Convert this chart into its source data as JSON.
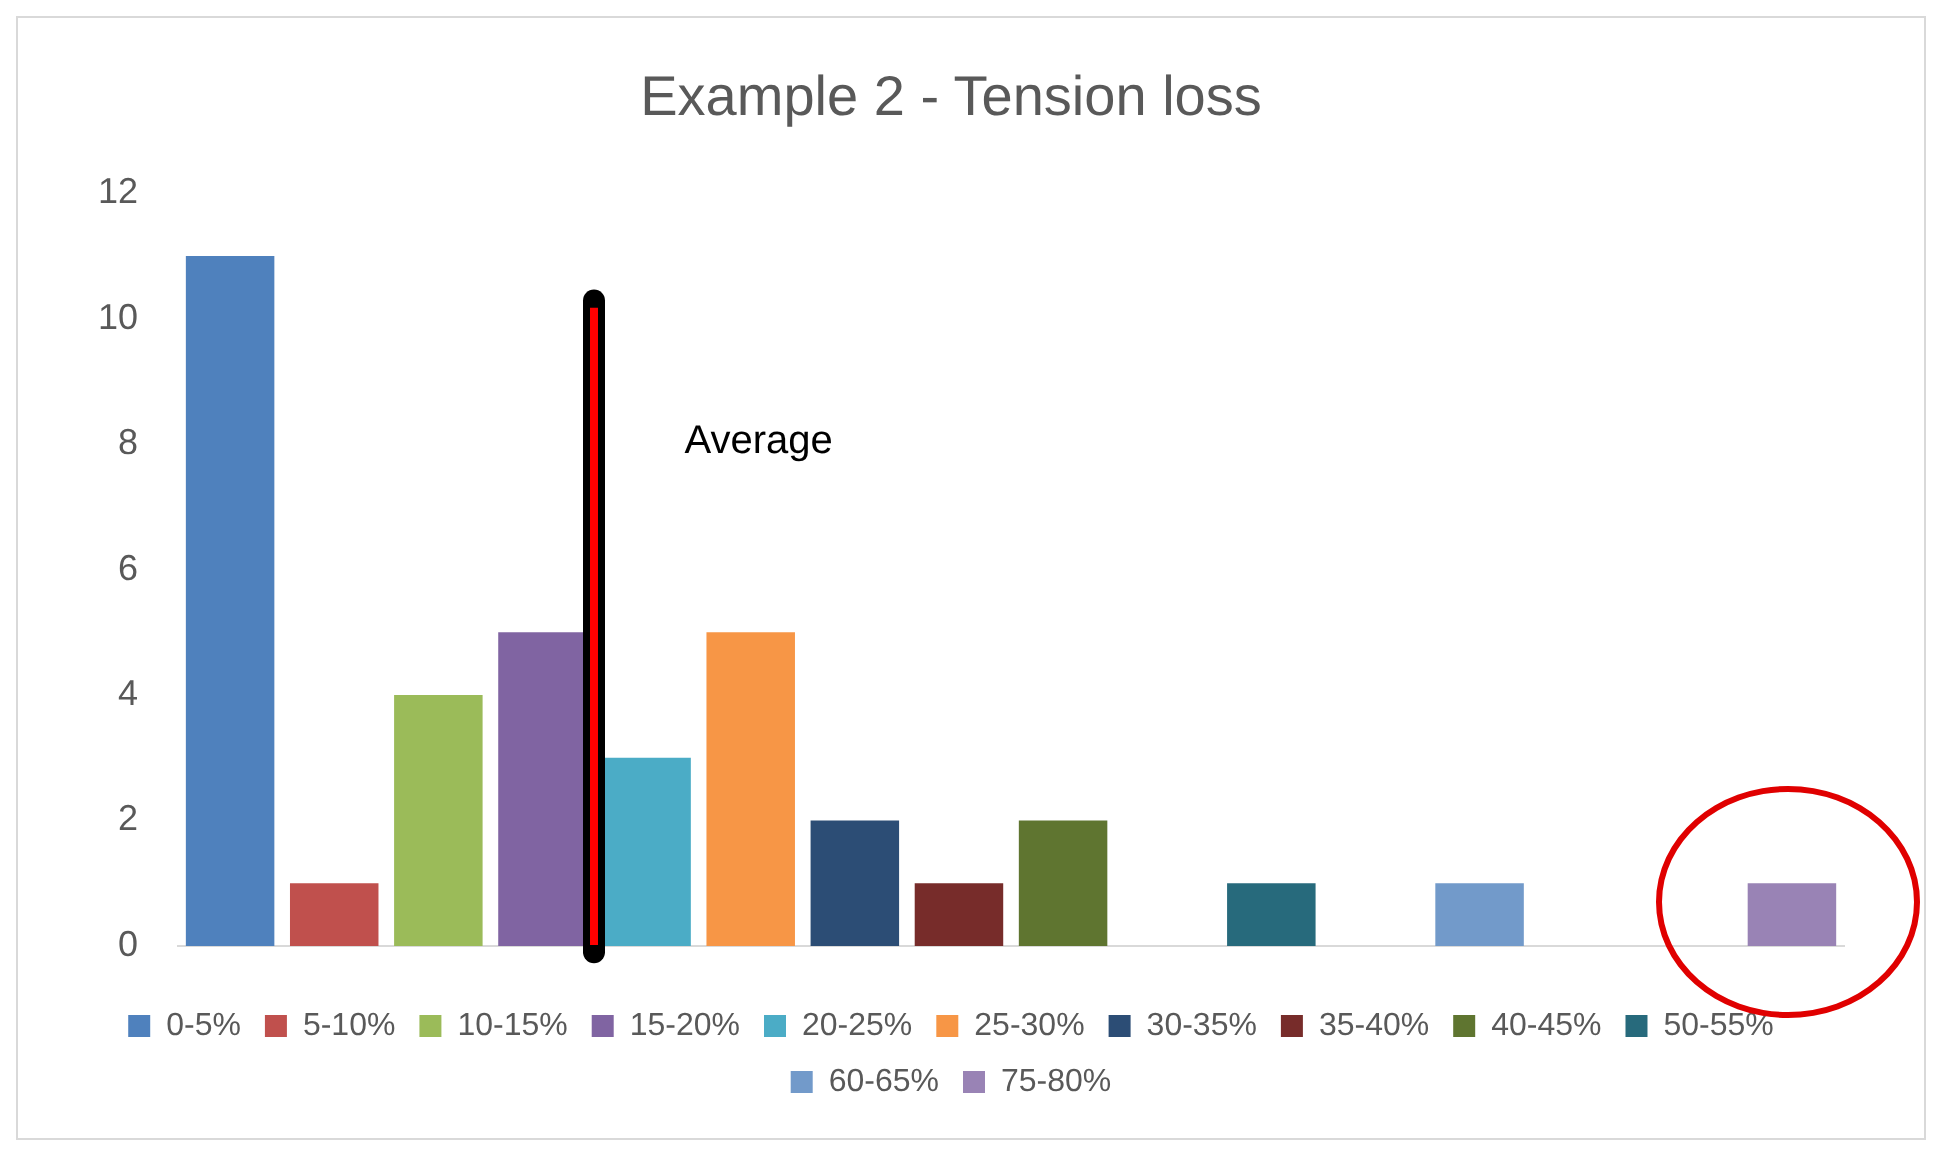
{
  "chart_data": {
    "type": "bar",
    "title": "Example 2 - Tension loss",
    "categories": [
      null,
      null,
      null,
      null,
      null,
      null,
      null,
      null,
      null,
      null,
      null,
      null,
      null,
      null,
      null,
      null
    ],
    "series": [
      {
        "name": "0-5%",
        "color": "#4f81bd",
        "values": [
          11,
          null,
          null,
          null,
          null,
          null,
          null,
          null,
          null,
          null,
          null,
          null,
          null,
          null,
          null,
          null
        ]
      },
      {
        "name": "5-10%",
        "color": "#c0504d",
        "values": [
          null,
          1,
          null,
          null,
          null,
          null,
          null,
          null,
          null,
          null,
          null,
          null,
          null,
          null,
          null,
          null
        ]
      },
      {
        "name": "10-15%",
        "color": "#9bbb59",
        "values": [
          null,
          null,
          4,
          null,
          null,
          null,
          null,
          null,
          null,
          null,
          null,
          null,
          null,
          null,
          null,
          null
        ]
      },
      {
        "name": "15-20%",
        "color": "#8064a2",
        "values": [
          null,
          null,
          null,
          5,
          null,
          null,
          null,
          null,
          null,
          null,
          null,
          null,
          null,
          null,
          null,
          null
        ]
      },
      {
        "name": "20-25%",
        "color": "#4bacc6",
        "values": [
          null,
          null,
          null,
          null,
          3,
          null,
          null,
          null,
          null,
          null,
          null,
          null,
          null,
          null,
          null,
          null
        ]
      },
      {
        "name": "25-30%",
        "color": "#f79646",
        "values": [
          null,
          null,
          null,
          null,
          null,
          5,
          null,
          null,
          null,
          null,
          null,
          null,
          null,
          null,
          null,
          null
        ]
      },
      {
        "name": "30-35%",
        "color": "#2c4d75",
        "values": [
          null,
          null,
          null,
          null,
          null,
          null,
          2,
          null,
          null,
          null,
          null,
          null,
          null,
          null,
          null,
          null
        ]
      },
      {
        "name": "35-40%",
        "color": "#772c2a",
        "values": [
          null,
          null,
          null,
          null,
          null,
          null,
          null,
          1,
          null,
          null,
          null,
          null,
          null,
          null,
          null,
          null
        ]
      },
      {
        "name": "40-45%",
        "color": "#5f7530",
        "values": [
          null,
          null,
          null,
          null,
          null,
          null,
          null,
          null,
          2,
          null,
          null,
          null,
          null,
          null,
          null,
          null
        ]
      },
      {
        "name": "50-55%",
        "color": "#276a7c",
        "values": [
          null,
          null,
          null,
          null,
          null,
          null,
          null,
          null,
          null,
          null,
          1,
          null,
          null,
          null,
          null,
          null
        ]
      },
      {
        "name": "60-65%",
        "color": "#729aca",
        "values": [
          null,
          null,
          null,
          null,
          null,
          null,
          null,
          null,
          null,
          null,
          null,
          null,
          1,
          null,
          null,
          null
        ]
      },
      {
        "name": "75-80%",
        "color": "#9983b5",
        "values": [
          null,
          null,
          null,
          null,
          null,
          null,
          null,
          null,
          null,
          null,
          null,
          null,
          null,
          null,
          null,
          1
        ]
      }
    ],
    "ylim": [
      0,
      12
    ],
    "yticks": [
      0,
      2,
      4,
      6,
      8,
      10,
      12
    ],
    "grid": false,
    "legend": "bottom",
    "annotations": [
      "Average"
    ]
  }
}
